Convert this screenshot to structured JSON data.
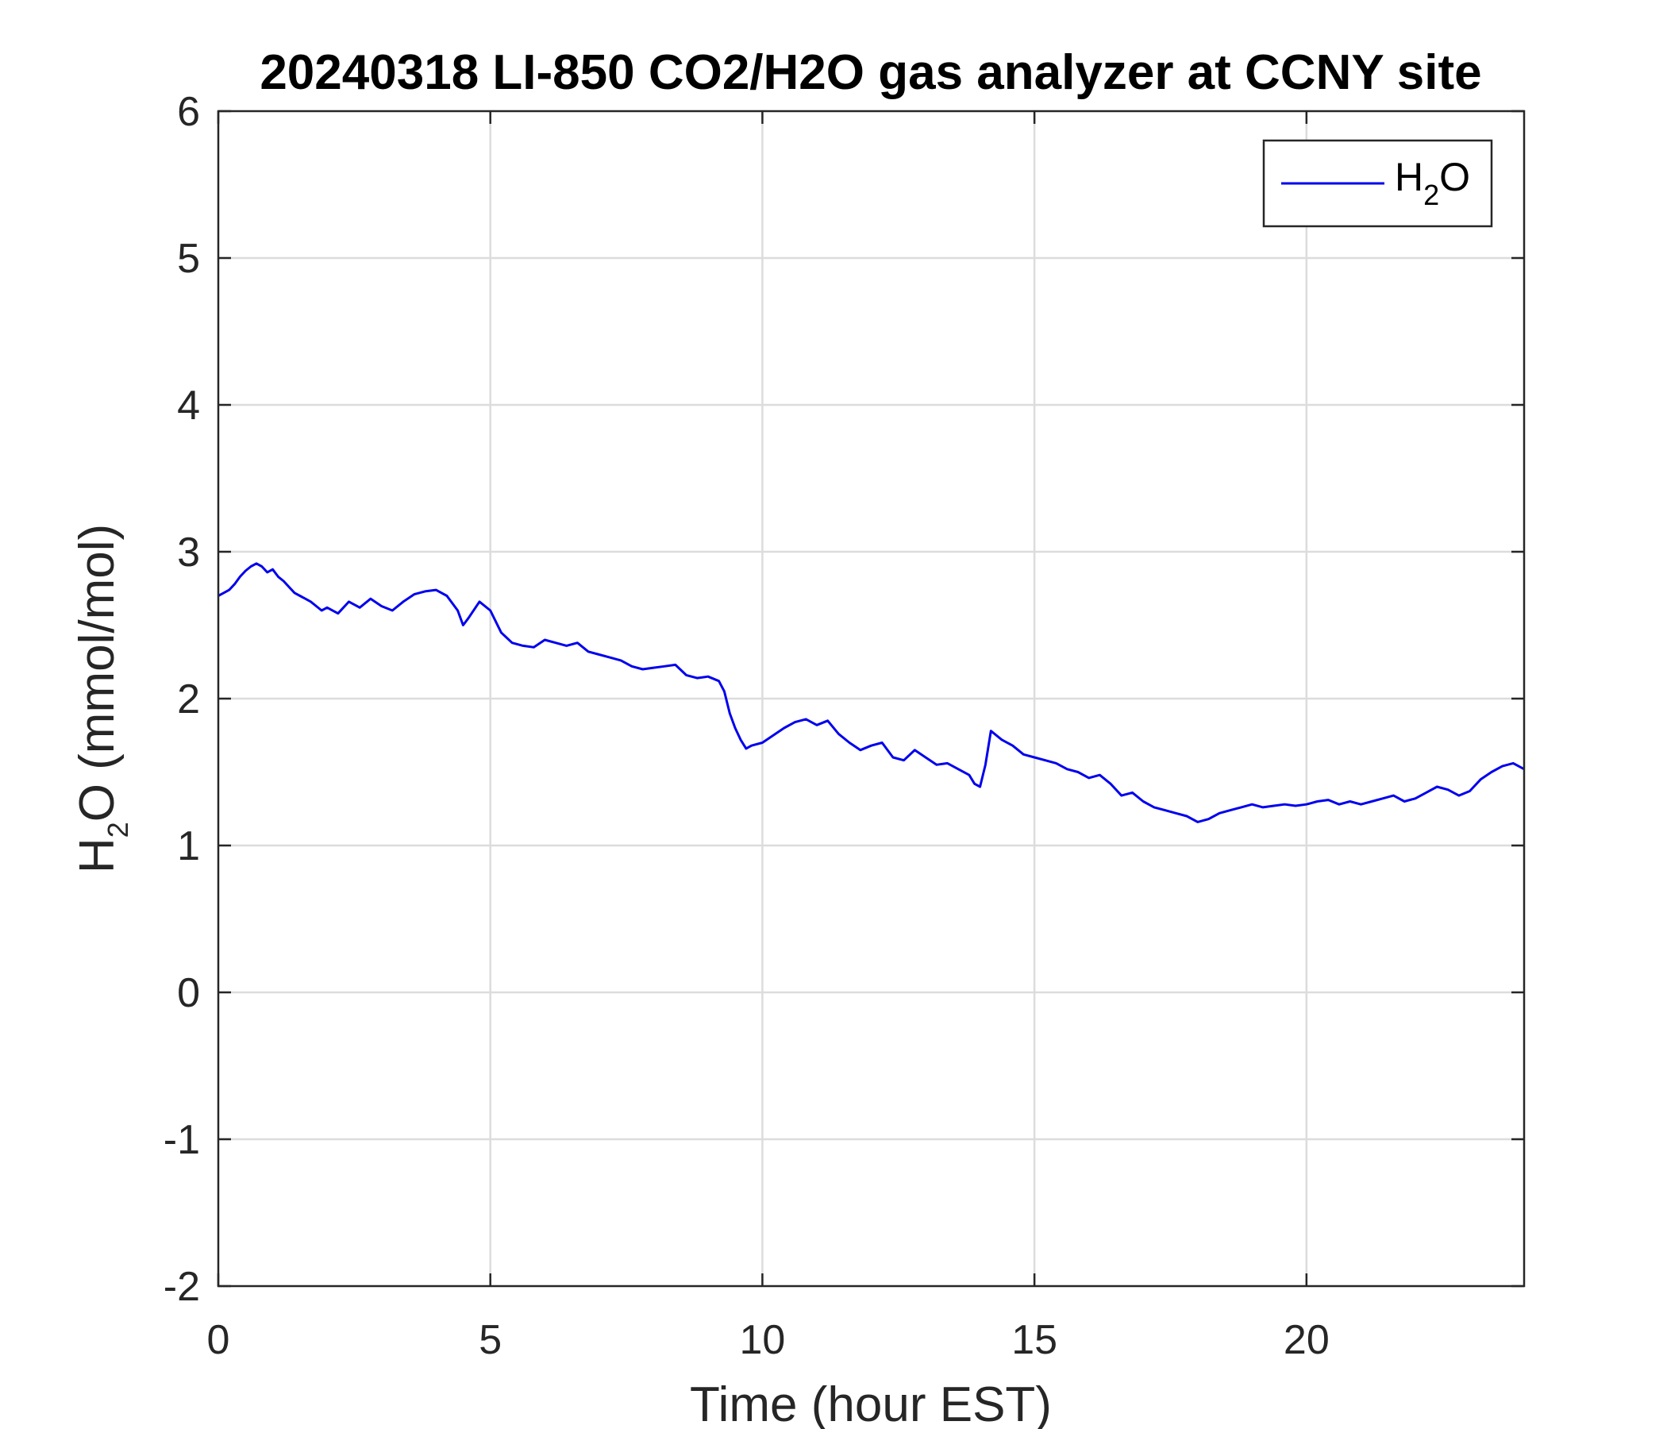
{
  "chart_data": {
    "type": "line",
    "title": "20240318 LI-850 CO2/H2O gas analyzer at CCNY site",
    "xlabel": "Time (hour EST)",
    "ylabel": {
      "main": "H",
      "sub": "2",
      "rest": "O (mmol/mol)"
    },
    "xlim": [
      0,
      24
    ],
    "ylim": [
      -2,
      6
    ],
    "xticks": [
      0,
      5,
      10,
      15,
      20
    ],
    "yticks": [
      -2,
      -1,
      0,
      1,
      2,
      3,
      4,
      5,
      6
    ],
    "grid": true,
    "legend": {
      "position": "top-right",
      "entries": [
        {
          "main": "H",
          "sub": "2",
          "rest": "O"
        }
      ]
    },
    "series": [
      {
        "name": "H2O",
        "color": "#0000ee",
        "x": [
          0.0,
          0.1,
          0.2,
          0.3,
          0.4,
          0.5,
          0.6,
          0.7,
          0.8,
          0.9,
          1.0,
          1.1,
          1.2,
          1.3,
          1.4,
          1.5,
          1.6,
          1.7,
          1.8,
          1.9,
          2.0,
          2.2,
          2.4,
          2.6,
          2.8,
          3.0,
          3.2,
          3.4,
          3.6,
          3.8,
          4.0,
          4.2,
          4.4,
          4.5,
          4.6,
          4.8,
          5.0,
          5.2,
          5.4,
          5.6,
          5.8,
          6.0,
          6.2,
          6.4,
          6.6,
          6.8,
          7.0,
          7.2,
          7.4,
          7.6,
          7.8,
          8.0,
          8.2,
          8.4,
          8.6,
          8.8,
          9.0,
          9.2,
          9.3,
          9.4,
          9.5,
          9.6,
          9.7,
          9.8,
          10.0,
          10.2,
          10.4,
          10.6,
          10.8,
          11.0,
          11.2,
          11.4,
          11.6,
          11.8,
          12.0,
          12.2,
          12.4,
          12.6,
          12.8,
          13.0,
          13.2,
          13.4,
          13.6,
          13.8,
          13.9,
          14.0,
          14.1,
          14.2,
          14.4,
          14.6,
          14.8,
          15.0,
          15.2,
          15.4,
          15.6,
          15.8,
          16.0,
          16.2,
          16.4,
          16.6,
          16.8,
          17.0,
          17.2,
          17.4,
          17.6,
          17.8,
          18.0,
          18.2,
          18.4,
          18.6,
          18.8,
          19.0,
          19.2,
          19.4,
          19.6,
          19.8,
          20.0,
          20.2,
          20.4,
          20.6,
          20.8,
          21.0,
          21.2,
          21.4,
          21.6,
          21.8,
          22.0,
          22.2,
          22.4,
          22.6,
          22.8,
          23.0,
          23.2,
          23.4,
          23.6,
          23.8,
          24.0
        ],
        "y": [
          2.7,
          2.72,
          2.74,
          2.78,
          2.83,
          2.87,
          2.9,
          2.92,
          2.9,
          2.86,
          2.88,
          2.83,
          2.8,
          2.76,
          2.72,
          2.7,
          2.68,
          2.66,
          2.63,
          2.6,
          2.62,
          2.58,
          2.66,
          2.62,
          2.68,
          2.63,
          2.6,
          2.66,
          2.71,
          2.73,
          2.74,
          2.7,
          2.6,
          2.5,
          2.55,
          2.66,
          2.6,
          2.45,
          2.38,
          2.36,
          2.35,
          2.4,
          2.38,
          2.36,
          2.38,
          2.32,
          2.3,
          2.28,
          2.26,
          2.22,
          2.2,
          2.21,
          2.22,
          2.23,
          2.16,
          2.14,
          2.15,
          2.12,
          2.05,
          1.9,
          1.8,
          1.72,
          1.66,
          1.68,
          1.7,
          1.75,
          1.8,
          1.84,
          1.86,
          1.82,
          1.85,
          1.76,
          1.7,
          1.65,
          1.68,
          1.7,
          1.6,
          1.58,
          1.65,
          1.6,
          1.55,
          1.56,
          1.52,
          1.48,
          1.42,
          1.4,
          1.55,
          1.78,
          1.72,
          1.68,
          1.62,
          1.6,
          1.58,
          1.56,
          1.52,
          1.5,
          1.46,
          1.48,
          1.42,
          1.34,
          1.36,
          1.3,
          1.26,
          1.24,
          1.22,
          1.2,
          1.16,
          1.18,
          1.22,
          1.24,
          1.26,
          1.28,
          1.26,
          1.27,
          1.28,
          1.27,
          1.28,
          1.3,
          1.31,
          1.28,
          1.3,
          1.28,
          1.3,
          1.32,
          1.34,
          1.3,
          1.32,
          1.36,
          1.4,
          1.38,
          1.34,
          1.37,
          1.45,
          1.5,
          1.54,
          1.56,
          1.52
        ]
      }
    ]
  }
}
